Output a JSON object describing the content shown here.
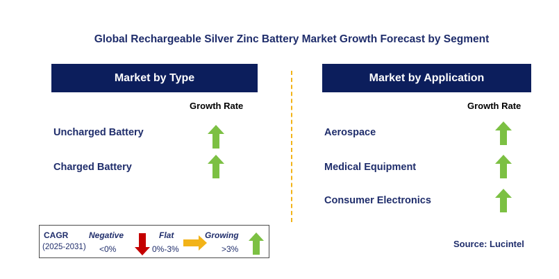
{
  "title": "Global Rechargeable Silver Zinc Battery Market Growth Forecast by Segment",
  "left_panel": {
    "header": "Market by Type",
    "growth_label": "Growth Rate",
    "items": [
      {
        "label": "Uncharged Battery",
        "trend": "growing"
      },
      {
        "label": "Charged Battery",
        "trend": "growing"
      }
    ]
  },
  "right_panel": {
    "header": "Market by Application",
    "growth_label": "Growth Rate",
    "items": [
      {
        "label": "Aerospace",
        "trend": "growing"
      },
      {
        "label": "Medical Equipment",
        "trend": "growing"
      },
      {
        "label": "Consumer Electronics",
        "trend": "growing"
      }
    ]
  },
  "legend": {
    "cagr_label": "CAGR",
    "period": "(2025-2031)",
    "negative_label": "Negative",
    "negative_value": "<0%",
    "flat_label": "Flat",
    "flat_value": "0%-3%",
    "growing_label": "Growing",
    "growing_value": ">3%"
  },
  "source": "Source: Lucintel",
  "colors": {
    "header_bg": "#0c1e5c",
    "text_navy": "#1f2d6b",
    "growing": "#7cc043",
    "negative": "#c40000",
    "flat": "#f2b318",
    "divider": "#f2b318"
  }
}
